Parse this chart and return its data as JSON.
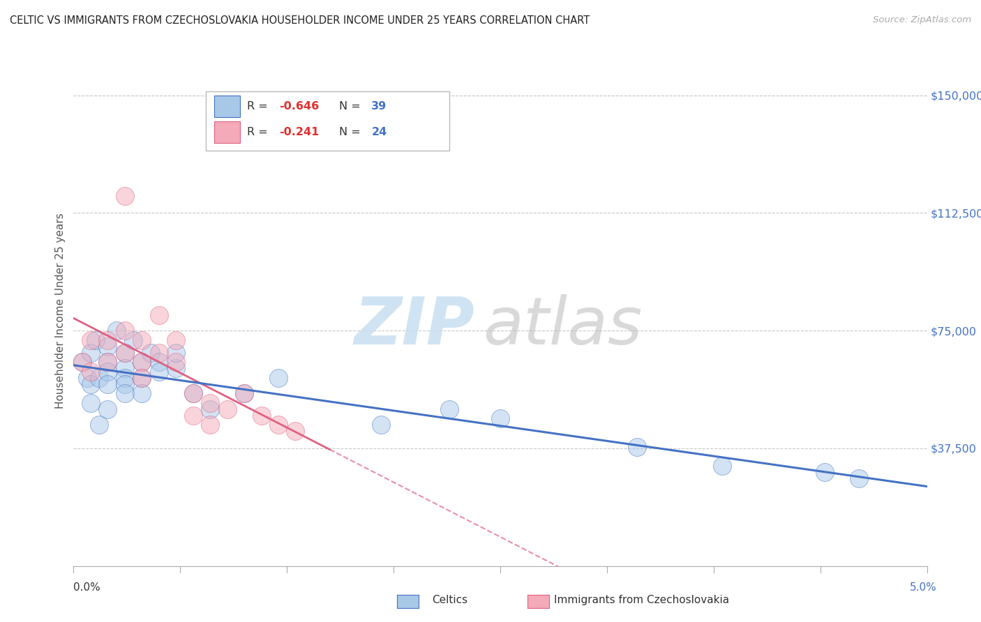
{
  "title": "CELTIC VS IMMIGRANTS FROM CZECHOSLOVAKIA HOUSEHOLDER INCOME UNDER 25 YEARS CORRELATION CHART",
  "source": "Source: ZipAtlas.com",
  "ylabel": "Householder Income Under 25 years",
  "xmin": 0.0,
  "xmax": 0.05,
  "ymin": 0,
  "ymax": 162500,
  "yticks": [
    37500,
    75000,
    112500,
    150000
  ],
  "ytick_labels": [
    "$37,500",
    "$75,000",
    "$112,500",
    "$150,000"
  ],
  "color_blue": "#a8c8e8",
  "color_pink": "#f4aab8",
  "color_blue_line": "#4472c4",
  "color_pink_line": "#e06080",
  "celtics_x": [
    0.0005,
    0.0008,
    0.001,
    0.001,
    0.001,
    0.0013,
    0.0015,
    0.0015,
    0.002,
    0.002,
    0.002,
    0.002,
    0.002,
    0.0025,
    0.003,
    0.003,
    0.003,
    0.003,
    0.003,
    0.0035,
    0.004,
    0.004,
    0.004,
    0.0045,
    0.005,
    0.005,
    0.006,
    0.006,
    0.007,
    0.008,
    0.01,
    0.012,
    0.018,
    0.022,
    0.025,
    0.033,
    0.038,
    0.044,
    0.046
  ],
  "celtics_y": [
    65000,
    60000,
    58000,
    52000,
    68000,
    72000,
    60000,
    45000,
    70000,
    65000,
    62000,
    58000,
    50000,
    75000,
    68000,
    63000,
    60000,
    58000,
    55000,
    72000,
    65000,
    60000,
    55000,
    68000,
    65000,
    62000,
    63000,
    68000,
    55000,
    50000,
    55000,
    60000,
    45000,
    50000,
    47000,
    38000,
    32000,
    30000,
    28000
  ],
  "czecho_x": [
    0.0005,
    0.001,
    0.001,
    0.002,
    0.002,
    0.003,
    0.003,
    0.003,
    0.004,
    0.004,
    0.004,
    0.005,
    0.005,
    0.006,
    0.006,
    0.007,
    0.007,
    0.008,
    0.008,
    0.009,
    0.01,
    0.011,
    0.012,
    0.013
  ],
  "czecho_y": [
    65000,
    72000,
    62000,
    72000,
    65000,
    118000,
    75000,
    68000,
    72000,
    65000,
    60000,
    80000,
    68000,
    72000,
    65000,
    55000,
    48000,
    52000,
    45000,
    50000,
    55000,
    48000,
    45000,
    43000
  ],
  "background_color": "#ffffff",
  "grid_color": "#c8c8c8",
  "title_color": "#222222",
  "axis_label_color": "#555555",
  "ytick_color": "#4472c4"
}
